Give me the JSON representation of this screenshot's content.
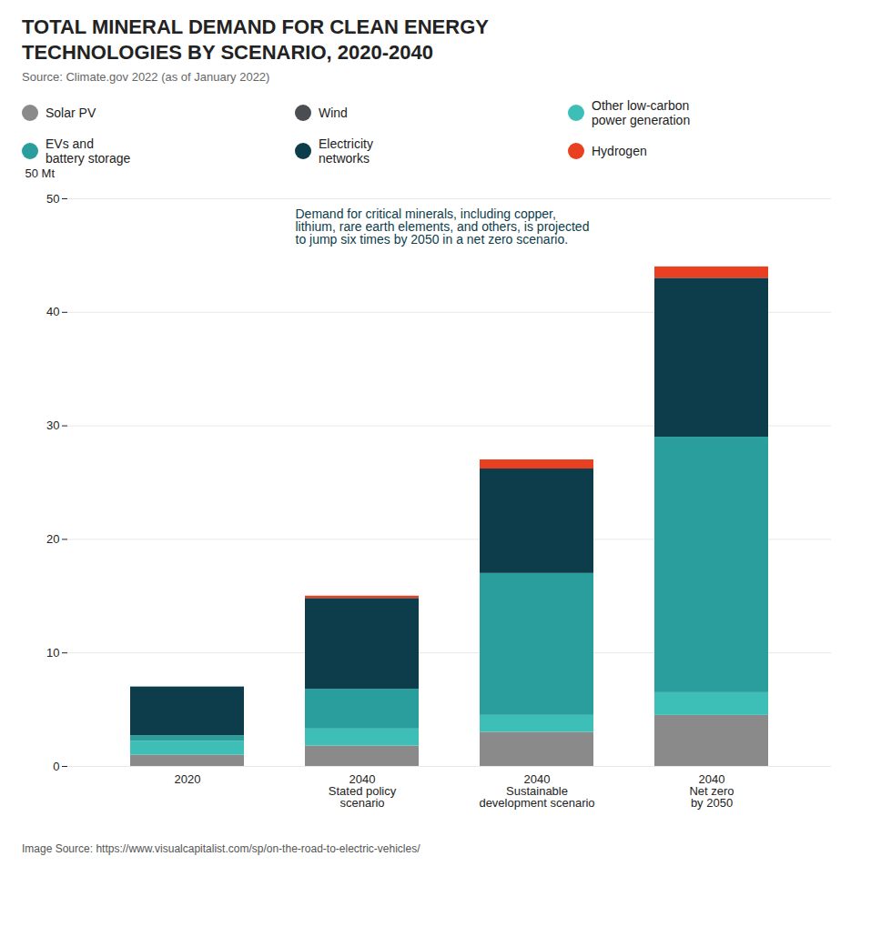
{
  "chart_data": {
    "type": "bar",
    "stacked": true,
    "title": "TOTAL MINERAL DEMAND FOR CLEAN ENERGY\nTECHNOLOGIES BY SCENARIO, 2020-2040",
    "source": "Source: Climate.gov 2022 (as of January 2022)",
    "footer": "Image Source: https://www.visualcapitalist.com/sp/on-the-road-to-electric-vehicles/",
    "ylabel": "50 Mt",
    "annotation": "Demand for critical minerals, including copper, lithium, rare earth elements, and others, is projected to jump six times by 2050 in a net zero scenario.",
    "categories": [
      "2020",
      "2040\nStated policy\nscenario",
      "2040\nSustainable\ndevelopment scenario",
      "2040\nNet zero\nby 2050"
    ],
    "series": [
      {
        "name": "Solar PV",
        "color": "#8a8a8a",
        "values": [
          1.0,
          1.8,
          3.0,
          4.5
        ]
      },
      {
        "name": "Wind",
        "color": "#4a4e52",
        "values": [
          null,
          null,
          null,
          null
        ]
      },
      {
        "name": "Other low-carbon\npower generation",
        "color": "#3dbfb8",
        "values": [
          1.2,
          1.5,
          1.5,
          2.0
        ]
      },
      {
        "name": "EVs and\nbattery storage",
        "color": "#2a9d9d",
        "values": [
          0.5,
          3.5,
          12.5,
          22.5
        ]
      },
      {
        "name": "Electricity\nnetworks",
        "color": "#0d3d4a",
        "values": [
          4.3,
          8.0,
          9.2,
          14.0
        ]
      },
      {
        "name": "Hydrogen",
        "color": "#e84020",
        "values": [
          0.0,
          0.2,
          0.8,
          1.0
        ]
      }
    ],
    "ylim": [
      0,
      50
    ],
    "yticks": [
      0,
      10,
      20,
      30,
      40,
      50
    ],
    "grid": true,
    "legend": "top"
  }
}
